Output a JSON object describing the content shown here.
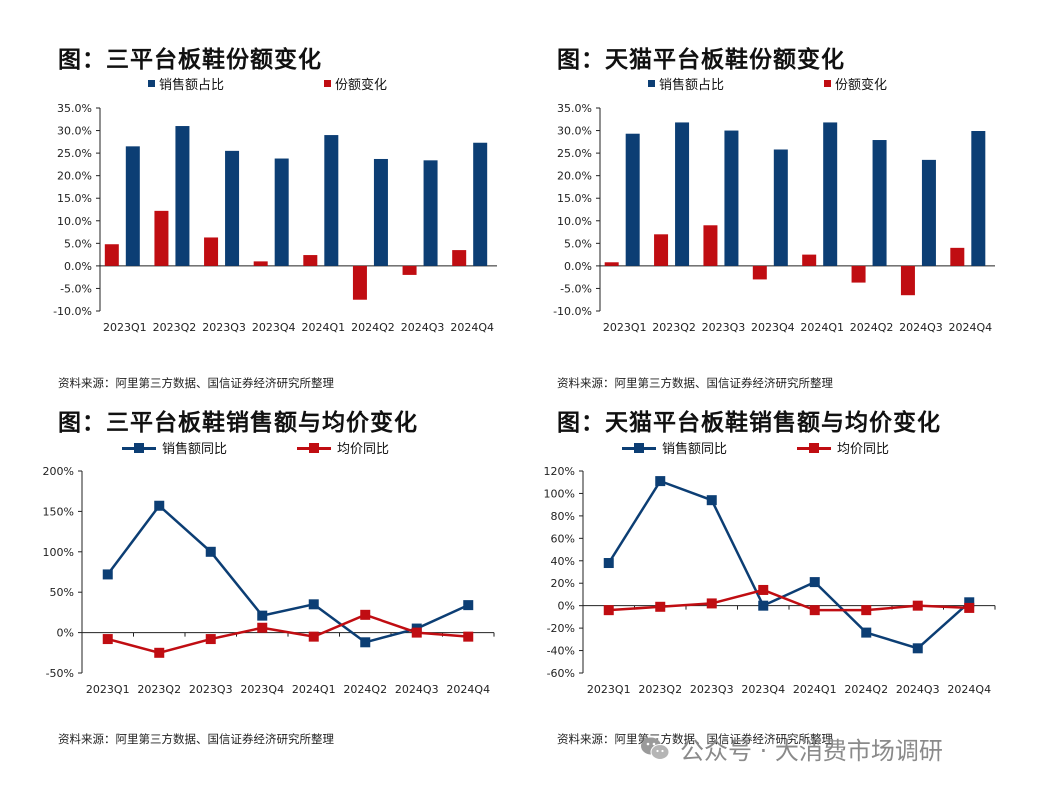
{
  "colors": {
    "blue": "#0c3e74",
    "red": "#c00d12",
    "axis": "#222222"
  },
  "panels": [
    {
      "title": "图：三平台板鞋份额变化",
      "legend": [
        "销售额占比",
        "份额变化"
      ],
      "source": "资料来源：阿里第三方数据、国信证券经济研究所整理"
    },
    {
      "title": "图：天猫平台板鞋份额变化",
      "legend": [
        "销售额占比",
        "份额变化"
      ],
      "source": "资料来源：阿里第三方数据、国信证券经济研究所整理"
    },
    {
      "title": "图：三平台板鞋销售额与均价变化",
      "legend": [
        "销售额同比",
        "均价同比"
      ],
      "source": "资料来源：阿里第三方数据、国信证券经济研究所整理"
    },
    {
      "title": "图：天猫平台板鞋销售额与均价变化",
      "legend": [
        "销售额同比",
        "均价同比"
      ],
      "source": "资料来源：阿里第三方数据、国信证券经济研究所整理"
    }
  ],
  "chart_data": [
    {
      "type": "bar",
      "title": "图：三平台板鞋份额变化",
      "categories": [
        "2023Q1",
        "2023Q2",
        "2023Q3",
        "2023Q4",
        "2024Q1",
        "2024Q2",
        "2024Q3",
        "2024Q4"
      ],
      "series": [
        {
          "name": "销售额占比",
          "values": [
            26.5,
            31.0,
            25.5,
            23.8,
            29.0,
            23.7,
            23.4,
            27.3
          ]
        },
        {
          "name": "份额变化",
          "values": [
            4.8,
            12.2,
            6.3,
            1.0,
            2.4,
            -7.5,
            -2.0,
            3.5
          ]
        }
      ],
      "ylim": [
        -10,
        35
      ],
      "yticks": [
        -10,
        -5,
        0,
        5,
        10,
        15,
        20,
        25,
        30,
        35
      ],
      "ytick_labels": [
        "-10.0%",
        "-5.0%",
        "0.0%",
        "5.0%",
        "10.0%",
        "15.0%",
        "20.0%",
        "25.0%",
        "30.0%",
        "35.0%"
      ]
    },
    {
      "type": "bar",
      "title": "图：天猫平台板鞋份额变化",
      "categories": [
        "2023Q1",
        "2023Q2",
        "2023Q3",
        "2023Q4",
        "2024Q1",
        "2024Q2",
        "2024Q3",
        "2024Q4"
      ],
      "series": [
        {
          "name": "销售额占比",
          "values": [
            29.3,
            31.8,
            30.0,
            25.8,
            31.8,
            27.9,
            23.5,
            29.9
          ]
        },
        {
          "name": "份额变化",
          "values": [
            0.8,
            7.0,
            9.0,
            -3.0,
            2.5,
            -3.7,
            -6.5,
            4.0
          ]
        }
      ],
      "ylim": [
        -10,
        35
      ],
      "yticks": [
        -10,
        -5,
        0,
        5,
        10,
        15,
        20,
        25,
        30,
        35
      ],
      "ytick_labels": [
        "-10.0%",
        "-5.0%",
        "0.0%",
        "5.0%",
        "10.0%",
        "15.0%",
        "20.0%",
        "25.0%",
        "30.0%",
        "35.0%"
      ]
    },
    {
      "type": "line",
      "title": "图：三平台板鞋销售额与均价变化",
      "categories": [
        "2023Q1",
        "2023Q2",
        "2023Q3",
        "2023Q4",
        "2024Q1",
        "2024Q2",
        "2024Q3",
        "2024Q4"
      ],
      "series": [
        {
          "name": "销售额同比",
          "values": [
            72,
            157,
            100,
            21,
            35,
            -12,
            5,
            34
          ]
        },
        {
          "name": "均价同比",
          "values": [
            -8,
            -25,
            -8,
            6,
            -5,
            22,
            0,
            -5
          ]
        }
      ],
      "ylim": [
        -50,
        200
      ],
      "yticks": [
        -50,
        0,
        50,
        100,
        150,
        200
      ],
      "ytick_labels": [
        "-50%",
        "0%",
        "50%",
        "100%",
        "150%",
        "200%"
      ]
    },
    {
      "type": "line",
      "title": "图：天猫平台板鞋销售额与均价变化",
      "categories": [
        "2023Q1",
        "2023Q2",
        "2023Q3",
        "2023Q4",
        "2024Q1",
        "2024Q2",
        "2024Q3",
        "2024Q4"
      ],
      "series": [
        {
          "name": "销售额同比",
          "values": [
            38,
            111,
            94,
            0,
            21,
            -24,
            -38,
            3
          ]
        },
        {
          "name": "均价同比",
          "values": [
            -4,
            -1,
            2,
            14,
            -4,
            -4,
            0,
            -2
          ]
        }
      ],
      "ylim": [
        -60,
        120
      ],
      "yticks": [
        -60,
        -40,
        -20,
        0,
        20,
        40,
        60,
        80,
        100,
        120
      ],
      "ytick_labels": [
        "-60%",
        "-40%",
        "-20%",
        "0%",
        "20%",
        "40%",
        "60%",
        "80%",
        "100%",
        "120%"
      ]
    }
  ],
  "watermark": {
    "text": "公众号 · 大消费市场调研",
    "icon": "wechat-icon"
  }
}
